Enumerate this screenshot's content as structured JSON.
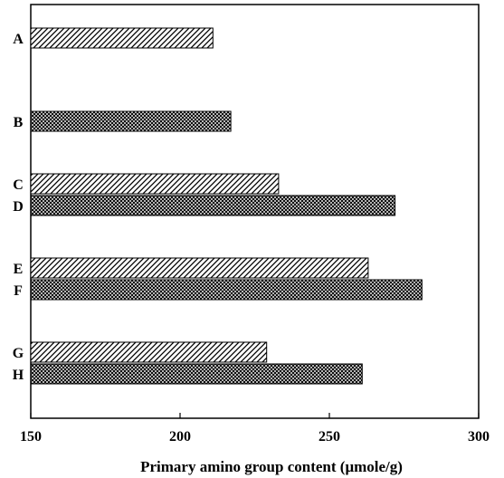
{
  "chart_data": {
    "type": "bar",
    "orientation": "horizontal",
    "categories": [
      "A",
      "B",
      "C",
      "D",
      "E",
      "F",
      "G",
      "H"
    ],
    "values": [
      211,
      217,
      233,
      272,
      263,
      281,
      229,
      261
    ],
    "patterns": [
      "hatched",
      "crosshatched",
      "hatched",
      "crosshatched",
      "hatched",
      "crosshatched",
      "hatched",
      "crosshatched"
    ],
    "xlabel": "Primary amino group content (μmole/g)",
    "xlim": [
      150,
      300
    ],
    "xticks": [
      150,
      200,
      250,
      300
    ],
    "xtick_labels": [
      "150",
      "200",
      "250",
      "300"
    ],
    "grid": false
  }
}
